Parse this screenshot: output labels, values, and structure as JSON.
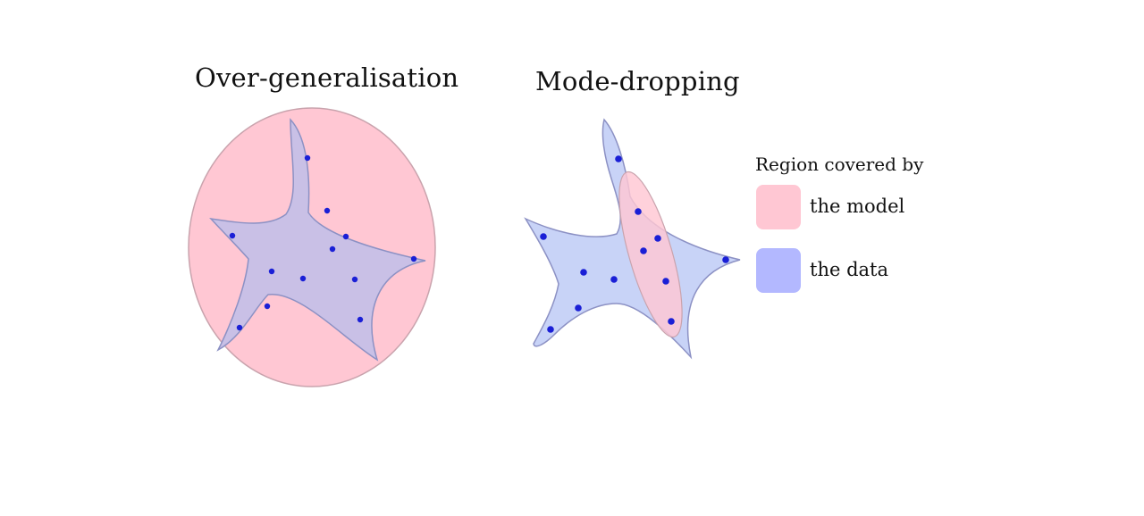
{
  "panels": {
    "left_title": "Over-generalisation",
    "right_title": "Mode-dropping"
  },
  "legend": {
    "heading": "Region covered by",
    "model_label": "the model",
    "data_label": "the data"
  },
  "colors": {
    "model_fill": "#ffc7d3",
    "model_stroke": "#c9a3ad",
    "data_fill": "#b3b8ff",
    "data_fill_light": "#c8d3f7",
    "data_stroke": "#8c91c4",
    "overlap_fill": "#c9c0e6",
    "point": "#1a1fd6"
  }
}
